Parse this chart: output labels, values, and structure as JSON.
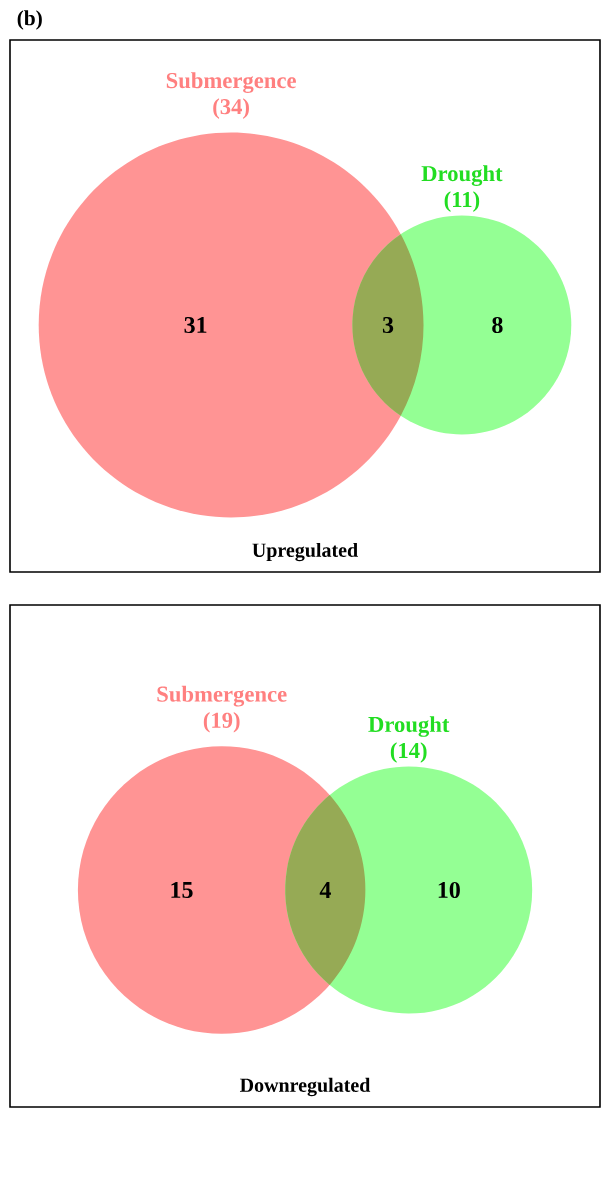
{
  "chart_data": [
    {
      "type": "other",
      "title": "(b)",
      "categories": [
        "Submergence",
        "Drought"
      ],
      "values": [
        34,
        11
      ],
      "value_labels": [
        "(34)",
        "(11)"
      ],
      "colors": [
        "#ff9494",
        "#94ff94"
      ],
      "annotations": [
        "31",
        "3",
        "8"
      ],
      "xlabel": "Upregulated"
    },
    {
      "type": "other",
      "categories": [
        "Submergence",
        "Drought"
      ],
      "values": [
        19,
        14
      ],
      "value_labels": [
        "(19)",
        "(14)"
      ],
      "colors": [
        "#ff9494",
        "#94ff94"
      ],
      "annotations": [
        "15",
        "4",
        "10"
      ],
      "xlabel": "Downregulated"
    }
  ]
}
